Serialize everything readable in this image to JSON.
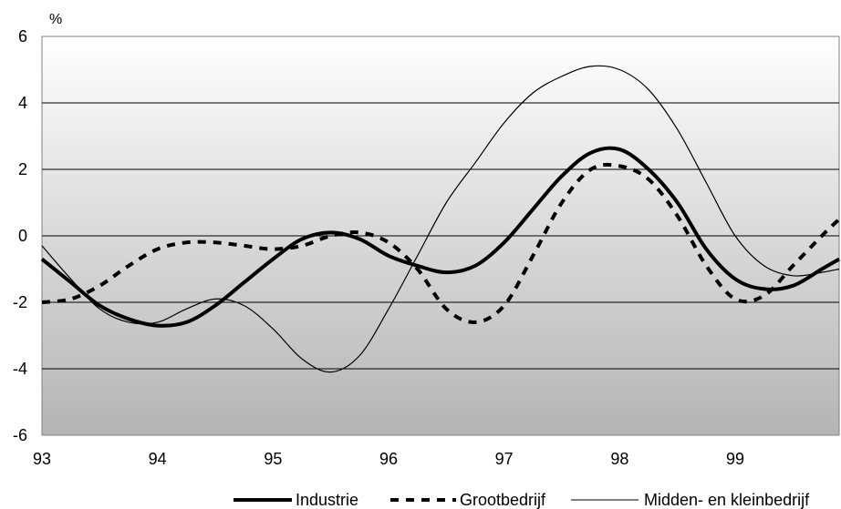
{
  "chart_data": {
    "type": "line",
    "y_unit_label": "%",
    "ylim": [
      -6,
      6
    ],
    "y_ticks": [
      "6",
      "4",
      "2",
      "0",
      "-2",
      "-4",
      "-6"
    ],
    "y_tick_values": [
      6,
      4,
      2,
      0,
      -2,
      -4,
      -6
    ],
    "xlim": [
      93,
      99.9
    ],
    "x_ticks": [
      "93",
      "94",
      "95",
      "96",
      "97",
      "98",
      "99"
    ],
    "x_tick_values": [
      93,
      94,
      95,
      96,
      97,
      98,
      99
    ],
    "grid": "horizontal",
    "background": "vertical gradient, white to grey",
    "legend_position": "bottom",
    "series": [
      {
        "name": "Industrie",
        "style": "thick-solid",
        "color": "#000000",
        "x": [
          93.0,
          93.25,
          93.5,
          93.75,
          94.0,
          94.25,
          94.5,
          94.75,
          95.0,
          95.25,
          95.5,
          95.75,
          96.0,
          96.25,
          96.5,
          96.75,
          97.0,
          97.25,
          97.5,
          97.75,
          98.0,
          98.25,
          98.5,
          98.75,
          99.0,
          99.25,
          99.5,
          99.75,
          99.9
        ],
        "y": [
          -0.7,
          -1.4,
          -2.1,
          -2.5,
          -2.7,
          -2.6,
          -2.1,
          -1.4,
          -0.7,
          -0.1,
          0.1,
          -0.1,
          -0.6,
          -0.9,
          -1.1,
          -0.9,
          -0.2,
          0.8,
          1.8,
          2.5,
          2.6,
          2.0,
          1.0,
          -0.4,
          -1.3,
          -1.6,
          -1.5,
          -1.0,
          -0.7
        ]
      },
      {
        "name": "Grootbedrijf",
        "style": "dashed",
        "color": "#000000",
        "x": [
          93.0,
          93.25,
          93.5,
          93.75,
          94.0,
          94.25,
          94.5,
          94.75,
          95.0,
          95.25,
          95.5,
          95.75,
          96.0,
          96.25,
          96.5,
          96.75,
          97.0,
          97.25,
          97.5,
          97.75,
          98.0,
          98.25,
          98.5,
          98.75,
          99.0,
          99.25,
          99.5,
          99.75,
          99.9
        ],
        "y": [
          -2.0,
          -1.9,
          -1.5,
          -0.9,
          -0.4,
          -0.2,
          -0.2,
          -0.3,
          -0.4,
          -0.3,
          0.0,
          0.1,
          -0.2,
          -1.0,
          -2.2,
          -2.6,
          -2.1,
          -0.6,
          1.0,
          2.0,
          2.1,
          1.7,
          0.6,
          -0.9,
          -1.9,
          -1.8,
          -0.9,
          0.0,
          0.5
        ]
      },
      {
        "name": "Midden- en kleinbedrijf",
        "style": "thin-solid",
        "color": "#000000",
        "x": [
          93.0,
          93.25,
          93.5,
          93.75,
          94.0,
          94.25,
          94.5,
          94.75,
          95.0,
          95.25,
          95.5,
          95.75,
          96.0,
          96.25,
          96.5,
          96.75,
          97.0,
          97.25,
          97.5,
          97.75,
          98.0,
          98.25,
          98.5,
          98.75,
          99.0,
          99.25,
          99.5,
          99.75,
          99.9
        ],
        "y": [
          -0.3,
          -1.3,
          -2.2,
          -2.6,
          -2.6,
          -2.2,
          -1.9,
          -2.1,
          -2.8,
          -3.7,
          -4.1,
          -3.6,
          -2.2,
          -0.6,
          1.0,
          2.2,
          3.4,
          4.3,
          4.8,
          5.1,
          5.0,
          4.4,
          3.2,
          1.6,
          0.0,
          -0.9,
          -1.2,
          -1.1,
          -1.0
        ]
      }
    ]
  }
}
